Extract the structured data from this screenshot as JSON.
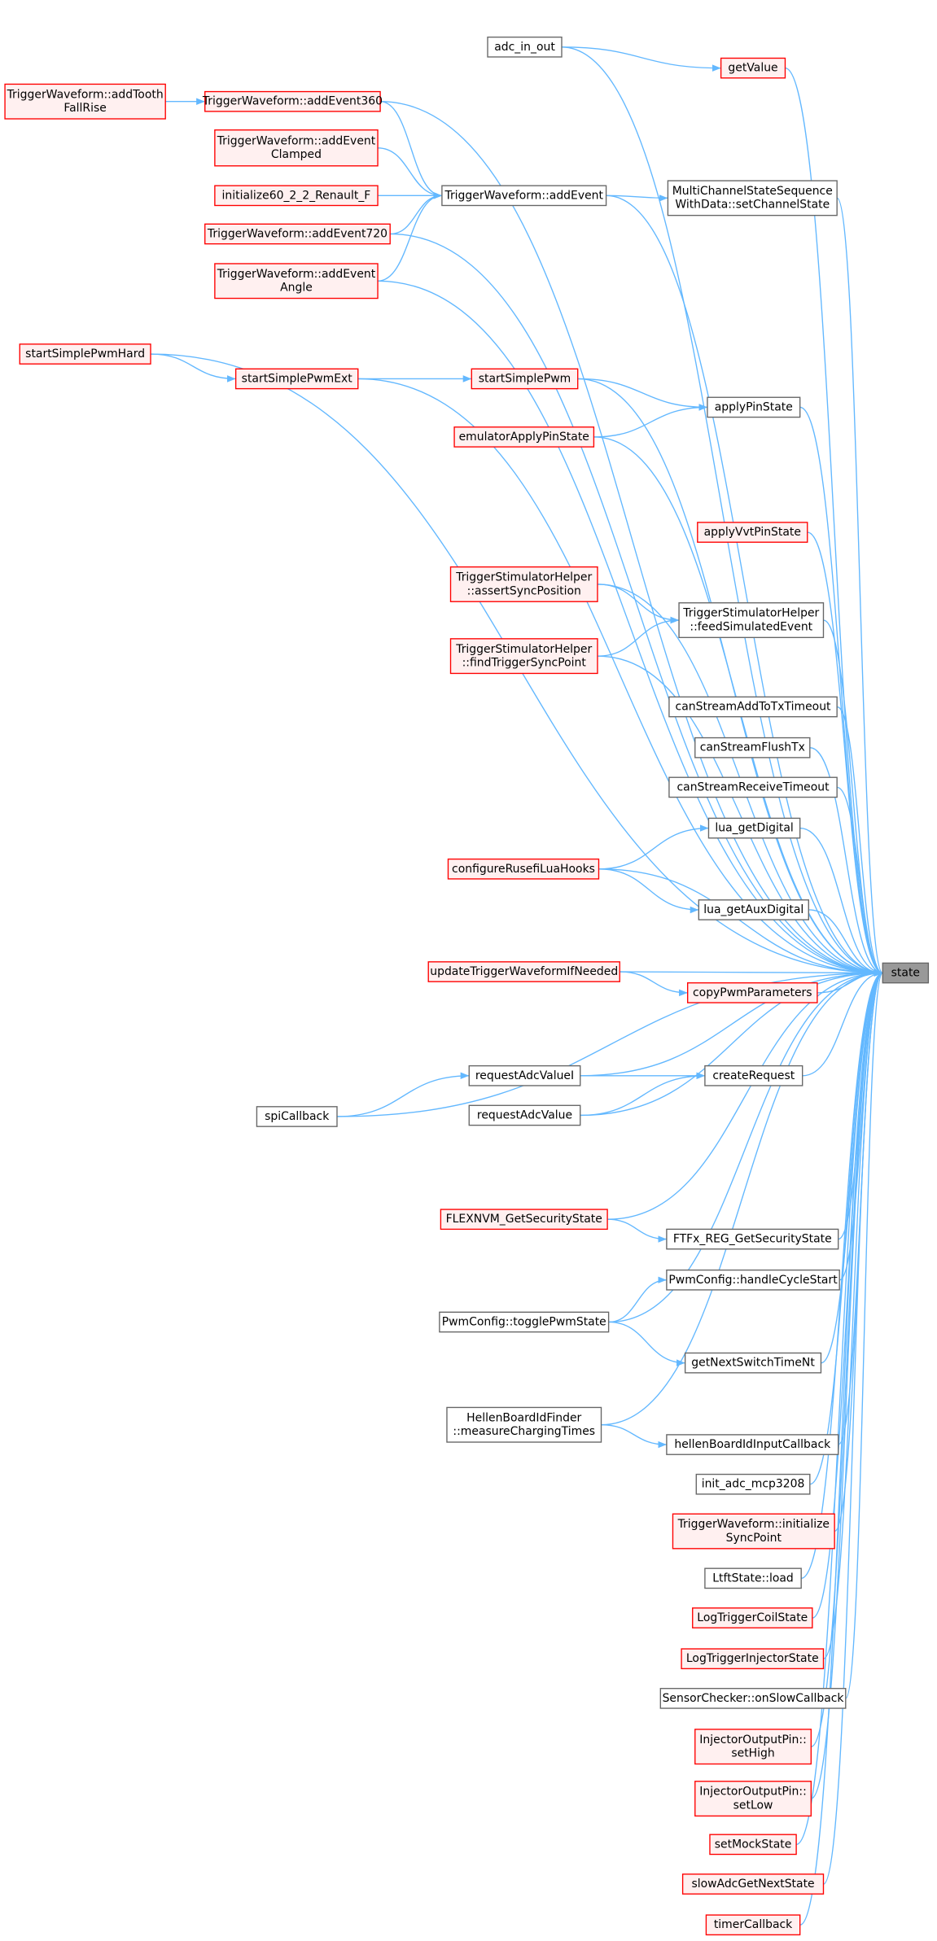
{
  "nodes": [
    {
      "label": [
        "state"
      ],
      "color": "#666666",
      "fill": "#999999"
    },
    {
      "label": [
        "adc_in_out"
      ],
      "color": "#666666"
    },
    {
      "label": [
        "getValue"
      ],
      "color": "#ff0000"
    },
    {
      "label": [
        "TriggerWaveform::addTooth",
        "FallRise"
      ],
      "color": "#ff0000"
    },
    {
      "label": [
        "TriggerWaveform::addEvent360"
      ],
      "color": "#ff0000"
    },
    {
      "label": [
        "TriggerWaveform::addEvent",
        "Clamped"
      ],
      "color": "#ff0000"
    },
    {
      "label": [
        "initialize60_2_2_Renault_F"
      ],
      "color": "#ff0000"
    },
    {
      "label": [
        "TriggerWaveform::addEvent"
      ],
      "color": "#666666"
    },
    {
      "label": [
        "MultiChannelStateSequence",
        "WithData::setChannelState"
      ],
      "color": "#666666"
    },
    {
      "label": [
        "TriggerWaveform::addEvent720"
      ],
      "color": "#ff0000"
    },
    {
      "label": [
        "TriggerWaveform::addEvent",
        "Angle"
      ],
      "color": "#ff0000"
    },
    {
      "label": [
        "startSimplePwmHard"
      ],
      "color": "#ff0000"
    },
    {
      "label": [
        "startSimplePwmExt"
      ],
      "color": "#ff0000"
    },
    {
      "label": [
        "startSimplePwm"
      ],
      "color": "#ff0000"
    },
    {
      "label": [
        "applyPinState"
      ],
      "color": "#666666"
    },
    {
      "label": [
        "emulatorApplyPinState"
      ],
      "color": "#ff0000"
    },
    {
      "label": [
        "applyVvtPinState"
      ],
      "color": "#ff0000"
    },
    {
      "label": [
        "TriggerStimulatorHelper",
        "::assertSyncPosition"
      ],
      "color": "#ff0000"
    },
    {
      "label": [
        "TriggerStimulatorHelper",
        "::feedSimulatedEvent"
      ],
      "color": "#666666"
    },
    {
      "label": [
        "TriggerStimulatorHelper",
        "::findTriggerSyncPoint"
      ],
      "color": "#ff0000"
    },
    {
      "label": [
        "canStreamAddToTxTimeout"
      ],
      "color": "#666666"
    },
    {
      "label": [
        "canStreamFlushTx"
      ],
      "color": "#666666"
    },
    {
      "label": [
        "canStreamReceiveTimeout"
      ],
      "color": "#666666"
    },
    {
      "label": [
        "lua_getDigital"
      ],
      "color": "#666666"
    },
    {
      "label": [
        "configureRusefiLuaHooks"
      ],
      "color": "#ff0000"
    },
    {
      "label": [
        "lua_getAuxDigital"
      ],
      "color": "#666666"
    },
    {
      "label": [
        "updateTriggerWaveformIfNeeded"
      ],
      "color": "#ff0000"
    },
    {
      "label": [
        "copyPwmParameters"
      ],
      "color": "#ff0000"
    },
    {
      "label": [
        "requestAdcValueI"
      ],
      "color": "#666666"
    },
    {
      "label": [
        "createRequest"
      ],
      "color": "#666666"
    },
    {
      "label": [
        "spiCallback"
      ],
      "color": "#666666"
    },
    {
      "label": [
        "requestAdcValue"
      ],
      "color": "#666666"
    },
    {
      "label": [
        "FLEXNVM_GetSecurityState"
      ],
      "color": "#ff0000"
    },
    {
      "label": [
        "FTFx_REG_GetSecurityState"
      ],
      "color": "#666666"
    },
    {
      "label": [
        "PwmConfig::handleCycleStart"
      ],
      "color": "#666666"
    },
    {
      "label": [
        "PwmConfig::togglePwmState"
      ],
      "color": "#666666"
    },
    {
      "label": [
        "getNextSwitchTimeNt"
      ],
      "color": "#666666"
    },
    {
      "label": [
        "HellenBoardIdFinder",
        "::measureChargingTimes"
      ],
      "color": "#666666"
    },
    {
      "label": [
        "hellenBoardIdInputCallback"
      ],
      "color": "#666666"
    },
    {
      "label": [
        "init_adc_mcp3208"
      ],
      "color": "#666666"
    },
    {
      "label": [
        "TriggerWaveform::initialize",
        "SyncPoint"
      ],
      "color": "#ff0000"
    },
    {
      "label": [
        "LtftState::load"
      ],
      "color": "#666666"
    },
    {
      "label": [
        "LogTriggerCoilState"
      ],
      "color": "#ff0000"
    },
    {
      "label": [
        "LogTriggerInjectorState"
      ],
      "color": "#ff0000"
    },
    {
      "label": [
        "SensorChecker::onSlowCallback"
      ],
      "color": "#666666"
    },
    {
      "label": [
        "InjectorOutputPin::",
        "setHigh"
      ],
      "color": "#ff0000"
    },
    {
      "label": [
        "InjectorOutputPin::",
        "setLow"
      ],
      "color": "#ff0000"
    },
    {
      "label": [
        "setMockState"
      ],
      "color": "#ff0000"
    },
    {
      "label": [
        "slowAdcGetNextState"
      ],
      "color": "#ff0000"
    },
    {
      "label": [
        "timerCallback"
      ],
      "color": "#ff0000"
    }
  ]
}
